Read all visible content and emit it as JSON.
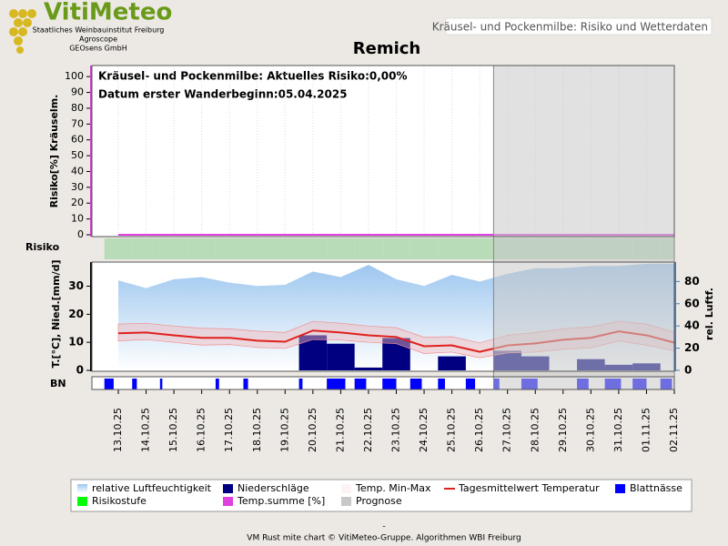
{
  "header": {
    "logo": "VitiMeteo",
    "org1": "Staatliches Weinbauinstitut Freiburg",
    "org2": "Agroscope",
    "org3": "GEOsens GmbH",
    "box": "Kräusel- und Pockenmilbe: Risiko und Wetterdaten"
  },
  "chart_data": {
    "type": "combo",
    "title": "Remich",
    "annotations": [
      "Kräusel- und Pockenmilbe: Aktuelles Risiko:0,00%",
      "Datum erster Wanderbeginn:05.04.2025"
    ],
    "categories": [
      "13.10.25",
      "14.10.25",
      "15.10.25",
      "16.10.25",
      "17.10.25",
      "18.10.25",
      "19.10.25",
      "20.10.25",
      "21.10.25",
      "22.10.25",
      "23.10.25",
      "24.10.25",
      "25.10.25",
      "26.10.25",
      "27.10.25",
      "28.10.25",
      "29.10.25",
      "30.10.25",
      "31.10.25",
      "01.11.25",
      "02.11.25"
    ],
    "top": {
      "ylabel": "Risiko[%] Kräuselm.",
      "ylim": [
        0,
        107
      ],
      "yticks": [
        0,
        10,
        20,
        30,
        40,
        50,
        60,
        70,
        80,
        90,
        100
      ]
    },
    "risk_label": "Risiko",
    "bottom": {
      "ylabel": "T.[°C], Nied.[mm/d]",
      "ylim": [
        0,
        38.6
      ],
      "yticks": [
        0,
        10,
        20,
        30
      ],
      "y2label": "rel. Luftf.",
      "y2lim": [
        0,
        97.5
      ],
      "y2ticks": [
        0,
        20,
        40,
        60,
        80
      ]
    },
    "bn_label": "BN",
    "forecast_from": "27.10.25",
    "series": [
      {
        "name": "relative Luftfeuchtigkeit",
        "color": "#a8cdf0",
        "axis": "y2",
        "values": [
          81,
          74,
          82,
          84,
          79,
          76,
          77,
          89,
          84,
          95,
          82,
          76,
          86,
          80,
          87,
          92,
          92,
          94,
          94,
          96,
          96
        ]
      },
      {
        "name": "Niederschläge",
        "color": "#000080",
        "values": [
          0,
          0,
          0,
          0,
          0,
          0,
          0,
          12.5,
          9.5,
          1,
          11.5,
          0,
          5,
          0,
          7,
          5,
          0,
          4,
          2,
          2.5,
          0
        ]
      },
      {
        "name": "Temp. Min-Max",
        "color": "#f5b8b8",
        "low": [
          10.5,
          11,
          10,
          9,
          9.2,
          8.2,
          7.8,
          11,
          10.8,
          10,
          9.5,
          6,
          6.5,
          4.5,
          6.2,
          6.5,
          7.5,
          8,
          10.5,
          9,
          7
        ],
        "high": [
          16.5,
          16.8,
          15.8,
          15,
          14.8,
          14,
          13.5,
          17.5,
          16.8,
          15.8,
          15.2,
          11.8,
          12,
          9.8,
          12.5,
          13.5,
          14.8,
          15.5,
          17.5,
          16.5,
          13.5
        ]
      },
      {
        "name": "Tagesmittelwert Temperatur",
        "color": "#e0201c",
        "values": [
          13.2,
          13.5,
          12.5,
          11.6,
          11.6,
          10.6,
          10.2,
          14.2,
          13.5,
          12.5,
          11.9,
          8.6,
          8.9,
          6.6,
          8.9,
          9.6,
          10.9,
          11.6,
          13.9,
          12.5,
          9.9
        ]
      },
      {
        "name": "Blattnässe",
        "color": "#0000ff",
        "values": [
          8,
          4,
          2,
          0,
          3,
          4,
          0,
          3,
          16,
          10,
          12,
          10,
          6,
          8,
          5,
          14,
          0,
          10,
          14,
          12,
          10
        ]
      },
      {
        "name": "Risikostufe",
        "color": "#00ff00",
        "values": [
          0,
          0,
          0,
          0,
          0,
          0,
          0,
          0,
          0,
          0,
          0,
          0,
          0,
          0,
          0,
          0,
          0,
          0,
          0,
          0,
          0
        ]
      },
      {
        "name": "Temp.summe [%]",
        "color": "#e040e0",
        "values": [
          0,
          0,
          0,
          0,
          0,
          0,
          0,
          0,
          0,
          0,
          0,
          0,
          0,
          0,
          0,
          0,
          0,
          0,
          0,
          0,
          0
        ]
      },
      {
        "name": "Prognose",
        "color": "#c8c8c8"
      }
    ],
    "footer": [
      "-",
      "VM Rust mite chart © VitiMeteo-Gruppe. Algorithmen WBI Freiburg"
    ]
  }
}
